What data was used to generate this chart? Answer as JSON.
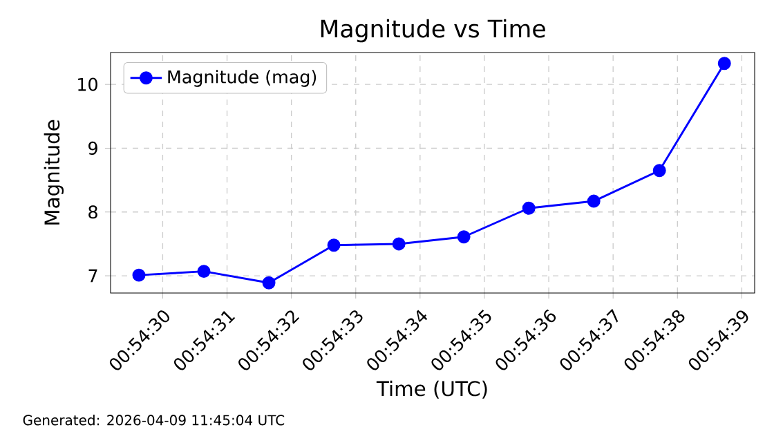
{
  "chart_data": {
    "type": "line",
    "title": "Magnitude vs Time",
    "xlabel": "Time (UTC)",
    "ylabel": "Magnitude",
    "x": [
      0.9082306,
      0.9085111,
      0.9087917,
      0.9090722,
      0.9093528,
      0.9096333,
      0.9099139,
      0.9101944,
      0.9104778,
      0.9107583
    ],
    "series": [
      {
        "name": "Magnitude (mag)",
        "color": "#0000ff",
        "values": [
          7.01,
          7.07,
          6.89,
          7.48,
          7.5,
          7.61,
          8.06,
          8.17,
          8.65,
          10.33
        ]
      }
    ],
    "xlim": [
      0.9081083,
      0.9108889
    ],
    "xticks": [
      {
        "value": 0.9083333,
        "label": "00:54:30"
      },
      {
        "value": 0.9086111,
        "label": "00:54:31"
      },
      {
        "value": 0.9088889,
        "label": "00:54:32"
      },
      {
        "value": 0.9091667,
        "label": "00:54:33"
      },
      {
        "value": 0.9094444,
        "label": "00:54:34"
      },
      {
        "value": 0.9097222,
        "label": "00:54:35"
      },
      {
        "value": 0.91,
        "label": "00:54:36"
      },
      {
        "value": 0.9102778,
        "label": "00:54:37"
      },
      {
        "value": 0.9105556,
        "label": "00:54:38"
      },
      {
        "value": 0.9108333,
        "label": "00:54:39"
      }
    ],
    "ylim": [
      6.73,
      10.5
    ],
    "yticks": [
      7,
      8,
      9,
      10
    ],
    "grid": true,
    "legend": "top left",
    "marker": "circle",
    "line_style": "solid",
    "annotations": [
      "Generated: 2026-04-09 11:45:04 UTC"
    ]
  }
}
